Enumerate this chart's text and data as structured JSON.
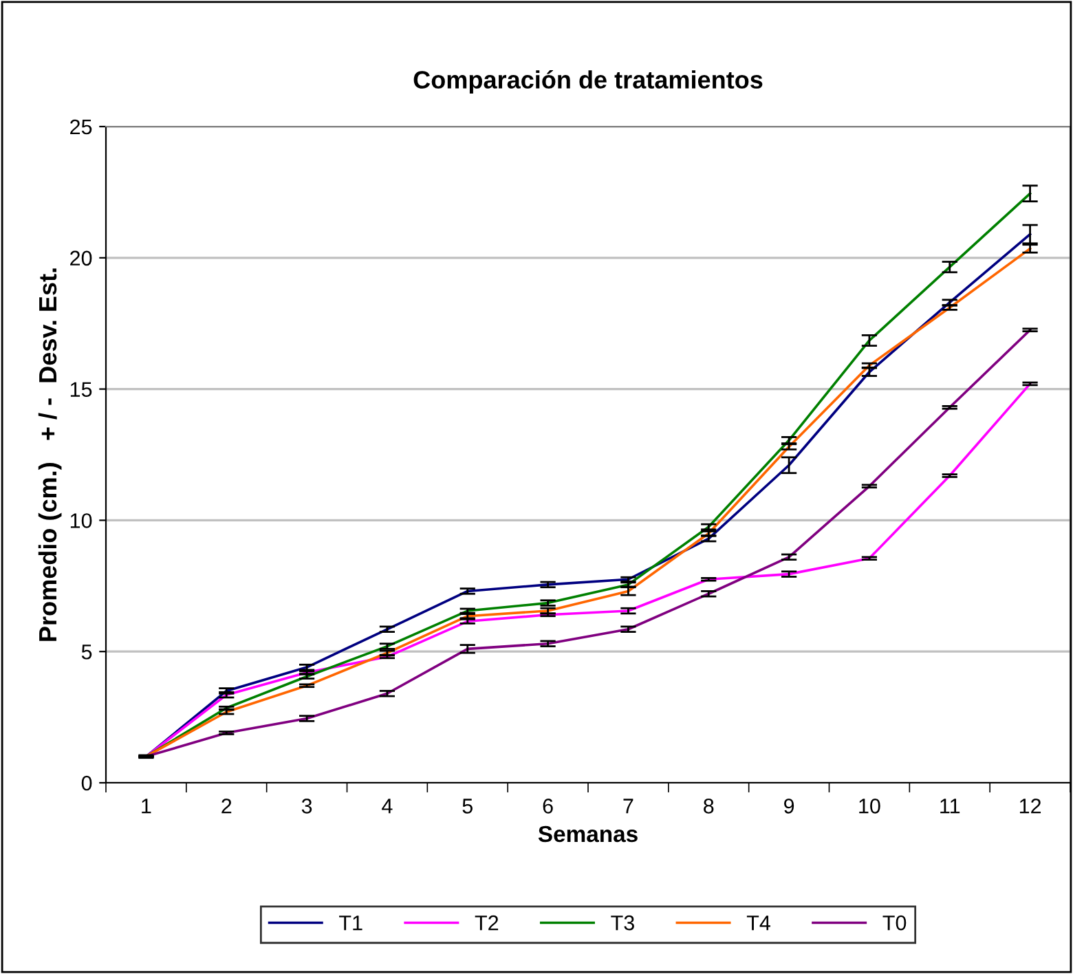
{
  "chart_data": {
    "type": "line",
    "title": "Comparación de tratamientos",
    "xlabel": "Semanas",
    "ylabel": "Promedio (cm.)   + / -  Desv. Est.",
    "categories": [
      "1",
      "2",
      "3",
      "4",
      "5",
      "6",
      "7",
      "8",
      "9",
      "10",
      "11",
      "12"
    ],
    "ylim": [
      0,
      25
    ],
    "yticks": [
      0,
      5,
      10,
      15,
      20,
      25
    ],
    "grid": "y",
    "legend": "bottom",
    "marker": "none",
    "line_style": "solid",
    "series": [
      {
        "name": "T1",
        "color": "#000080",
        "values": [
          1,
          3.5,
          4.4,
          5.85,
          7.3,
          7.55,
          7.75,
          9.3,
          12.1,
          15.65,
          18.3,
          20.9
        ],
        "errors": [
          null,
          0.1,
          0.1,
          0.1,
          0.1,
          0.1,
          0.08,
          0.1,
          0.3,
          0.15,
          0.1,
          0.35
        ]
      },
      {
        "name": "T2",
        "color": "#ff00ff",
        "values": [
          1,
          3.35,
          4.2,
          4.8,
          6.15,
          6.4,
          6.55,
          7.75,
          7.95,
          8.55,
          11.7,
          15.2
        ],
        "errors": [
          null,
          0.1,
          0.05,
          0.05,
          0.08,
          0.05,
          0.1,
          0.05,
          0.1,
          0.05,
          0.05,
          0.05
        ]
      },
      {
        "name": "T3",
        "color": "#008000",
        "values": [
          1,
          2.85,
          4.05,
          5.2,
          6.55,
          6.85,
          7.55,
          9.75,
          13.05,
          16.85,
          19.65,
          22.45
        ],
        "errors": [
          null,
          0.05,
          0.08,
          0.1,
          0.08,
          0.1,
          0.08,
          0.1,
          0.12,
          0.2,
          0.2,
          0.3
        ]
      },
      {
        "name": "T4",
        "color": "#ff6600",
        "values": [
          1,
          2.7,
          3.7,
          4.95,
          6.35,
          6.55,
          7.3,
          9.5,
          12.8,
          15.9,
          18.1,
          20.35
        ],
        "errors": [
          null,
          0.08,
          0.05,
          0.08,
          0.08,
          0.1,
          0.15,
          0.08,
          0.1,
          0.08,
          0.08,
          0.15
        ]
      },
      {
        "name": "T0",
        "color": "#800080",
        "values": [
          1,
          1.9,
          2.45,
          3.4,
          5.1,
          5.3,
          5.85,
          7.2,
          8.6,
          11.3,
          14.3,
          17.25
        ],
        "errors": [
          0.05,
          0.05,
          0.1,
          0.1,
          0.15,
          0.1,
          0.1,
          0.1,
          0.1,
          0.05,
          0.05,
          0.05
        ]
      }
    ]
  }
}
